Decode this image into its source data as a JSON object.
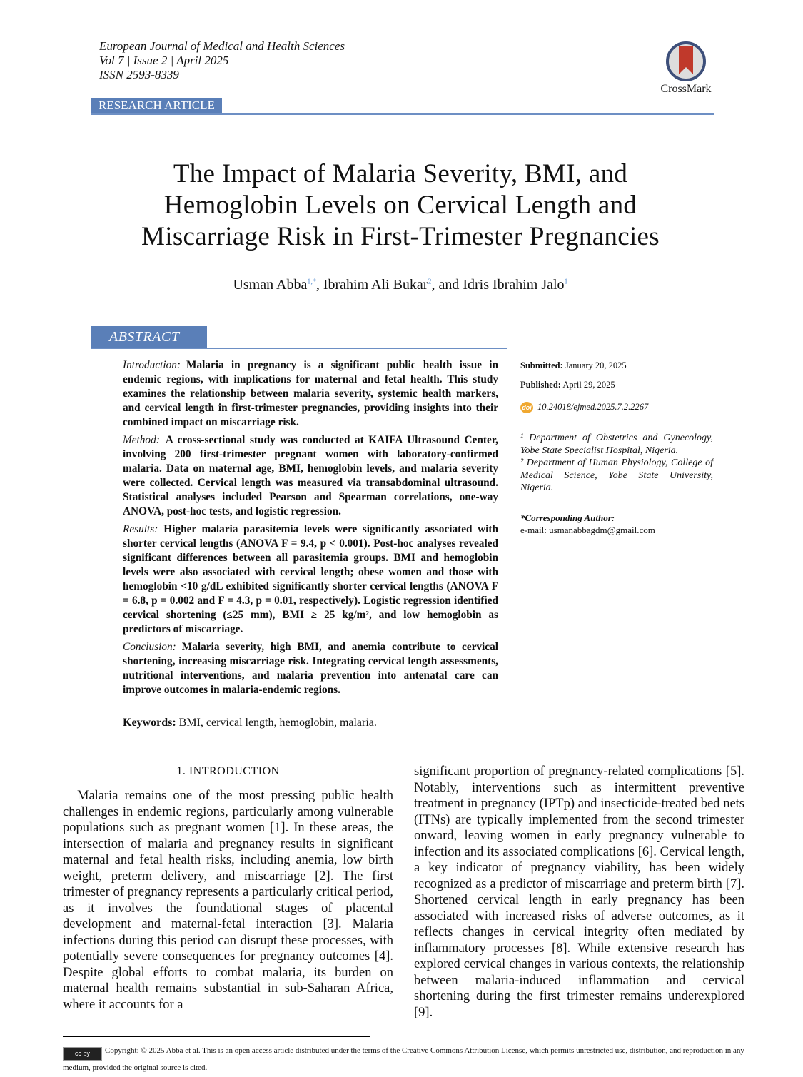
{
  "header": {
    "journal": "European Journal of Medical and Health Sciences",
    "issue": "Vol 7 | Issue 2 | April 2025",
    "issn": "ISSN 2593-8339",
    "crossmark": "CrossMark",
    "article_type": "RESEARCH ARTICLE"
  },
  "title_lines": [
    "The Impact of Malaria Severity, BMI, and",
    "Hemoglobin Levels on Cervical Length and",
    "Miscarriage Risk in First-Trimester Pregnancies"
  ],
  "authors": [
    {
      "name": "Usman Abba",
      "sup": "1,*",
      "sep": ", "
    },
    {
      "name": "Ibrahim Ali Bukar",
      "sup": "2",
      "sep": ", and "
    },
    {
      "name": "Idris Ibrahim Jalo",
      "sup": "1",
      "sep": ""
    }
  ],
  "abstract": {
    "heading": "ABSTRACT",
    "sections": [
      {
        "label": "Introduction:",
        "text": "Malaria in pregnancy is a significant public health issue in endemic regions, with implications for maternal and fetal health. This study examines the relationship between malaria severity, systemic health markers, and cervical length in first-trimester pregnancies, providing insights into their combined impact on miscarriage risk."
      },
      {
        "label": "Method:",
        "text": "A cross-sectional study was conducted at KAIFA Ultrasound Center, involving 200 first-trimester pregnant women with laboratory-confirmed malaria. Data on maternal age, BMI, hemoglobin levels, and malaria severity were collected. Cervical length was measured via transabdominal ultrasound. Statistical analyses included Pearson and Spearman correlations, one-way ANOVA, post-hoc tests, and logistic regression."
      },
      {
        "label": "Results:",
        "text": "Higher malaria parasitemia levels were significantly associated with shorter cervical lengths (ANOVA F = 9.4, p < 0.001). Post-hoc analyses revealed significant differences between all parasitemia groups. BMI and hemoglobin levels were also associated with cervical length; obese women and those with hemoglobin <10 g/dL exhibited significantly shorter cervical lengths (ANOVA F = 6.8, p = 0.002 and F = 4.3, p = 0.01, respectively). Logistic regression identified cervical shortening (≤25 mm), BMI ≥ 25 kg/m², and low hemoglobin as predictors of miscarriage."
      },
      {
        "label": "Conclusion:",
        "text": "Malaria severity, high BMI, and anemia contribute to cervical shortening, increasing miscarriage risk. Integrating cervical length assessments, nutritional interventions, and malaria prevention into antenatal care can improve outcomes in malaria-endemic regions."
      }
    ],
    "keywords_label": "Keywords:",
    "keywords": "BMI, cervical length, hemoglobin, malaria."
  },
  "sidebar": {
    "submitted_label": "Submitted:",
    "submitted": "January 20, 2025",
    "published_label": "Published:",
    "published": "April 29, 2025",
    "doi": "10.24018/ejmed.2025.7.2.2267",
    "aff1": "¹ Department of Obstetrics and Gynecology, Yobe State Specialist Hospital, Nigeria.",
    "aff2": "² Department of Human Physiology, College of Medical Science, Yobe State University, Nigeria.",
    "corr_label": "*Corresponding Author:",
    "email": "e-mail: usmanabbagdm@gmail.com"
  },
  "body": {
    "section_heading": "1.   INTRODUCTION",
    "col1": "Malaria remains one of the most pressing public health challenges in endemic regions, particularly among vulnerable populations such as pregnant women [1]. In these areas, the intersection of malaria and pregnancy results in significant maternal and fetal health risks, including anemia, low birth weight, preterm delivery, and miscarriage [2]. The first trimester of pregnancy represents a particularly critical period, as it involves the foundational stages of placental development and maternal-fetal interaction [3]. Malaria infections during this period can disrupt these processes, with potentially severe consequences for pregnancy outcomes [4]. Despite global efforts to combat malaria, its burden on maternal health remains substantial in sub-Saharan Africa, where it accounts for a",
    "col2": "significant proportion of pregnancy-related complications [5]. Notably, interventions such as intermittent preventive treatment in pregnancy (IPTp) and insecticide-treated bed nets (ITNs) are typically implemented from the second trimester onward, leaving women in early pregnancy vulnerable to infection and its associated complications [6]. Cervical length, a key indicator of pregnancy viability, has been widely recognized as a predictor of miscarriage and preterm birth [7]. Shortened cervical length in early pregnancy has been associated with increased risks of adverse outcomes, as it reflects changes in cervical integrity often mediated by inflammatory processes [8]. While extensive research has explored cervical changes in various contexts, the relationship between malaria-induced inflammation and cervical shortening during the first trimester remains underexplored [9]."
  },
  "footer": {
    "license_badge": "cc by",
    "copyright": "Copyright: © 2025 Abba et al. This is an open access article distributed under the terms of the Creative Commons Attribution License, which permits unrestricted use, distribution, and reproduction in any medium, provided the original source is cited."
  },
  "colors": {
    "accent": "#5a7fb8",
    "crossmark_red": "#c0392b",
    "doi_orange": "#f0a830"
  }
}
